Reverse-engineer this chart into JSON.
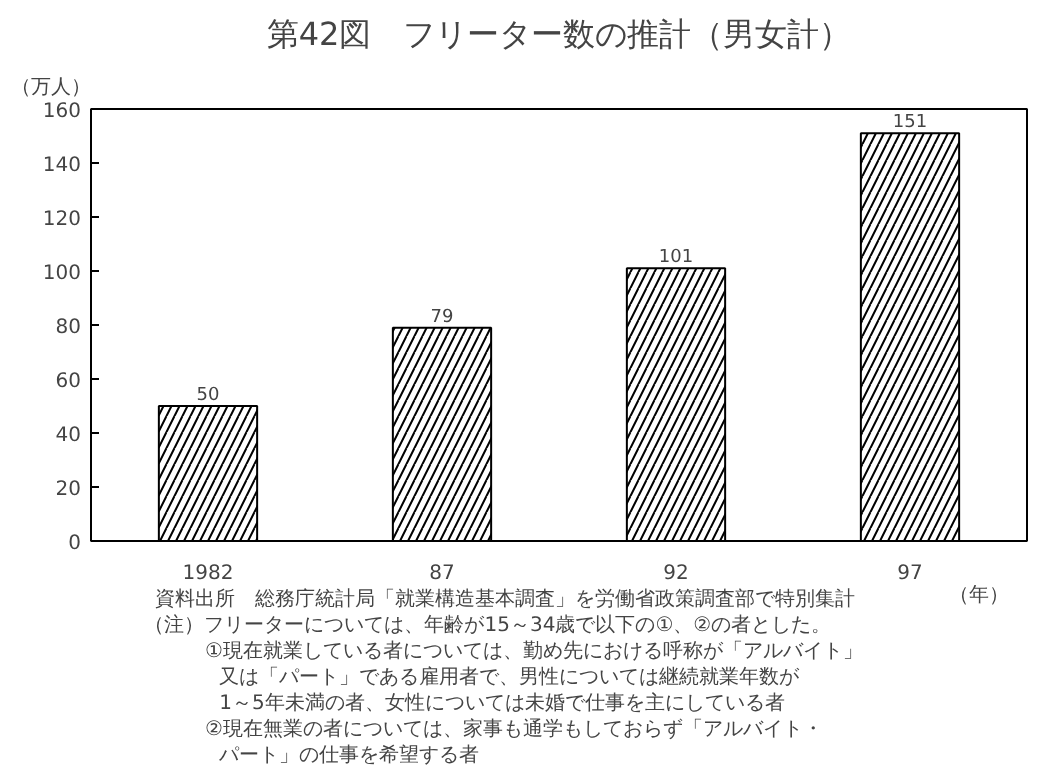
{
  "chart_data": {
    "type": "bar",
    "title": "第42図　フリーター数の推計（男女計）",
    "ylabel": "（万人）",
    "xlabel": "（年）",
    "categories": [
      "1982",
      "87",
      "92",
      "97"
    ],
    "values": [
      50,
      79,
      101,
      151
    ],
    "color": "#ffffff",
    "data_labels": true,
    "ylim": [
      0,
      160
    ],
    "yticks": [
      0,
      20,
      40,
      60,
      80,
      100,
      120,
      140,
      160
    ],
    "grid": false,
    "annotations": [
      "資料出所　総務庁統計局「就業構造基本調査」を労働省政策調査部で特別集計",
      "（注）フリーターについては、年齢が15～34歳で以下の①、②の者とした。",
      "①現在就業している者については、勤め先における呼称が「アルバイト」",
      "又は「パート」である雇用者で、男性については継続就業年数が",
      "1～5年未満の者、女性については未婚で仕事を主にしている者",
      "②現在無業の者については、家事も通学もしておらず「アルバイト・",
      "パート」の仕事を希望する者"
    ]
  }
}
